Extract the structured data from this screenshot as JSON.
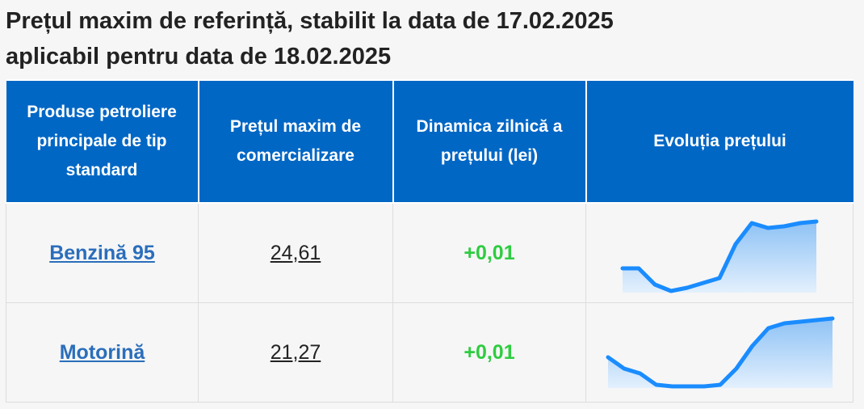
{
  "header": {
    "title_line1": "Prețul maxim de referință, stabilit la data de 17.02.2025",
    "title_line2": "aplicabil pentru data de 18.02.2025"
  },
  "table": {
    "headers": [
      "Produse petroliere principale de tip standard",
      "Prețul maxim de comercializare",
      "Dinamica zilnică a prețului (lei)",
      "Evoluția prețului"
    ],
    "rows": [
      {
        "product": "Benzină 95",
        "price": "24,61",
        "change": "+0,01",
        "trend": [
          24.32,
          24.32,
          24.22,
          24.18,
          24.2,
          24.23,
          24.26,
          24.47,
          24.6,
          24.57,
          24.58,
          24.6,
          24.61
        ]
      },
      {
        "product": "Motorină",
        "price": "21,27",
        "change": "+0,01",
        "trend": [
          21.03,
          20.96,
          20.93,
          20.86,
          20.85,
          20.85,
          20.85,
          20.86,
          20.96,
          21.1,
          21.21,
          21.24,
          21.25,
          21.26,
          21.27
        ]
      }
    ]
  }
}
